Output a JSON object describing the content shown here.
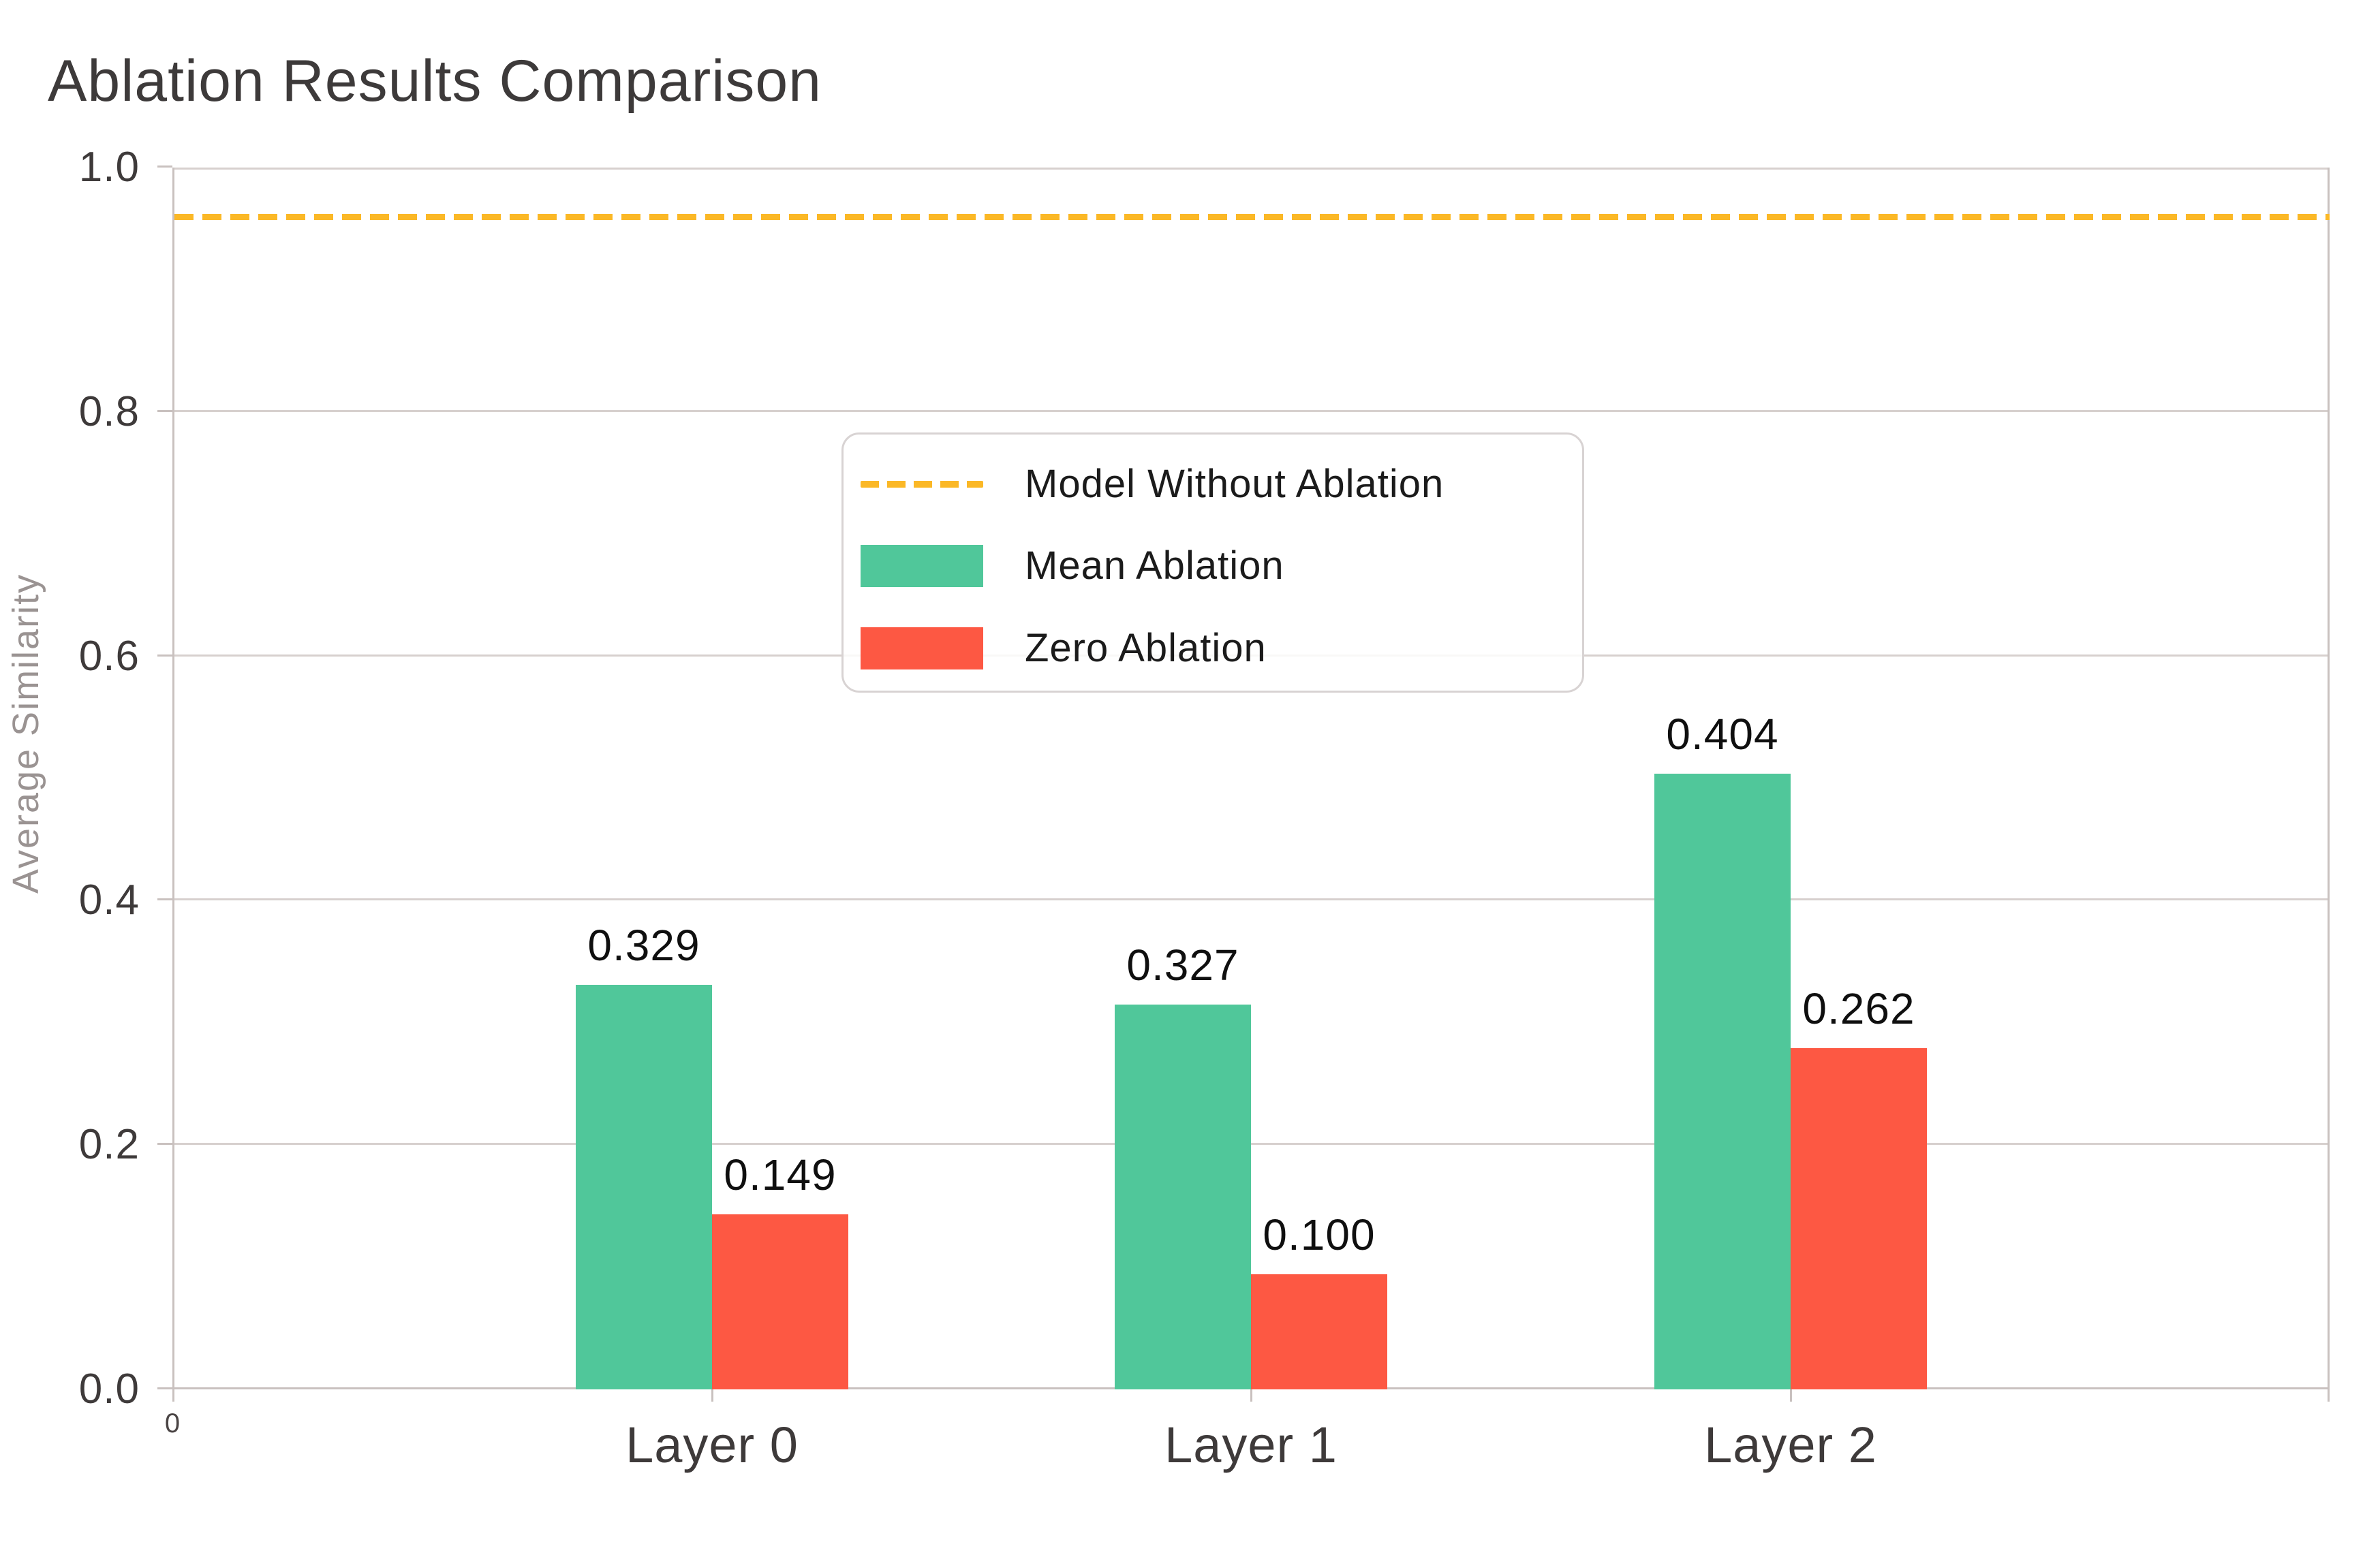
{
  "title": "Ablation Results Comparison",
  "chart_data": {
    "type": "bar",
    "title": "Ablation Results Comparison",
    "xlabel": "",
    "ylabel": "Average Similarity",
    "categories": [
      "Layer 0",
      "Layer 1",
      "Layer 2"
    ],
    "series": [
      {
        "name": "Mean Ablation",
        "color": "#50c79a",
        "values": [
          0.329,
          0.327,
          0.404
        ],
        "value_labels": [
          "0.329",
          "0.327",
          "0.404"
        ],
        "drawn_fractions": [
          0.331,
          0.315,
          0.504
        ]
      },
      {
        "name": "Zero Ablation",
        "color": "#fd5843",
        "values": [
          0.149,
          0.1,
          0.262
        ],
        "value_labels": [
          "0.149",
          "0.100",
          "0.262"
        ],
        "drawn_fractions": [
          0.143,
          0.094,
          0.279
        ]
      }
    ],
    "reference_line": {
      "label": "Model Without Ablation",
      "value": 0.96,
      "color": "#fbb826",
      "style": "dashed"
    },
    "ylim": [
      0.0,
      1.0
    ],
    "yticks": [
      "0.0",
      "0.2",
      "0.4",
      "0.6",
      "0.8",
      "1.0"
    ],
    "origin_tick_label": "0",
    "grid": "horizontal",
    "legend_position": "upper-center",
    "colors": {
      "grid": "#d7d0ce",
      "axis": "#c9c1bf",
      "title_text": "#3d3a3a",
      "tick_text": "#3e3a3a",
      "axis_title_text": "#9a9392",
      "value_label_text": "#0f0f0f"
    }
  }
}
